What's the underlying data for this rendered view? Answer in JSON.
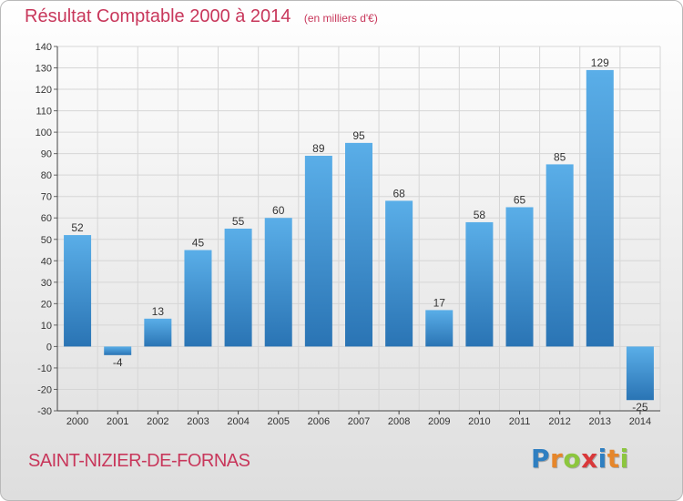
{
  "header": {
    "title": "Résultat Comptable 2000 à 2014",
    "unit": "(en milliers d'€)"
  },
  "footer": {
    "commune": "SAINT-NIZIER-DE-FORNAS",
    "logo_text": "Proxiti",
    "logo_colors": [
      "#2f7fc1",
      "#e6862a",
      "#8cc63e",
      "#d9383a",
      "#2f7fc1",
      "#e6862a",
      "#8cc63e"
    ]
  },
  "colors": {
    "accent": "#c8375b",
    "bar_top": "#5aaee8",
    "bar_bottom": "#2a74b4",
    "grid": "#d6d6d6"
  },
  "chart_data": {
    "type": "bar",
    "title": "Résultat Comptable 2000 à 2014",
    "subtitle": "(en milliers d'€)",
    "categories": [
      "2000",
      "2001",
      "2002",
      "2003",
      "2004",
      "2005",
      "2006",
      "2007",
      "2008",
      "2009",
      "2010",
      "2011",
      "2012",
      "2013",
      "2014"
    ],
    "values": [
      52,
      -4,
      13,
      45,
      55,
      60,
      89,
      95,
      68,
      17,
      58,
      65,
      85,
      129,
      -25
    ],
    "ylim": [
      -30,
      140
    ],
    "ytick_step": 10,
    "grid": true,
    "data_labels": true
  }
}
